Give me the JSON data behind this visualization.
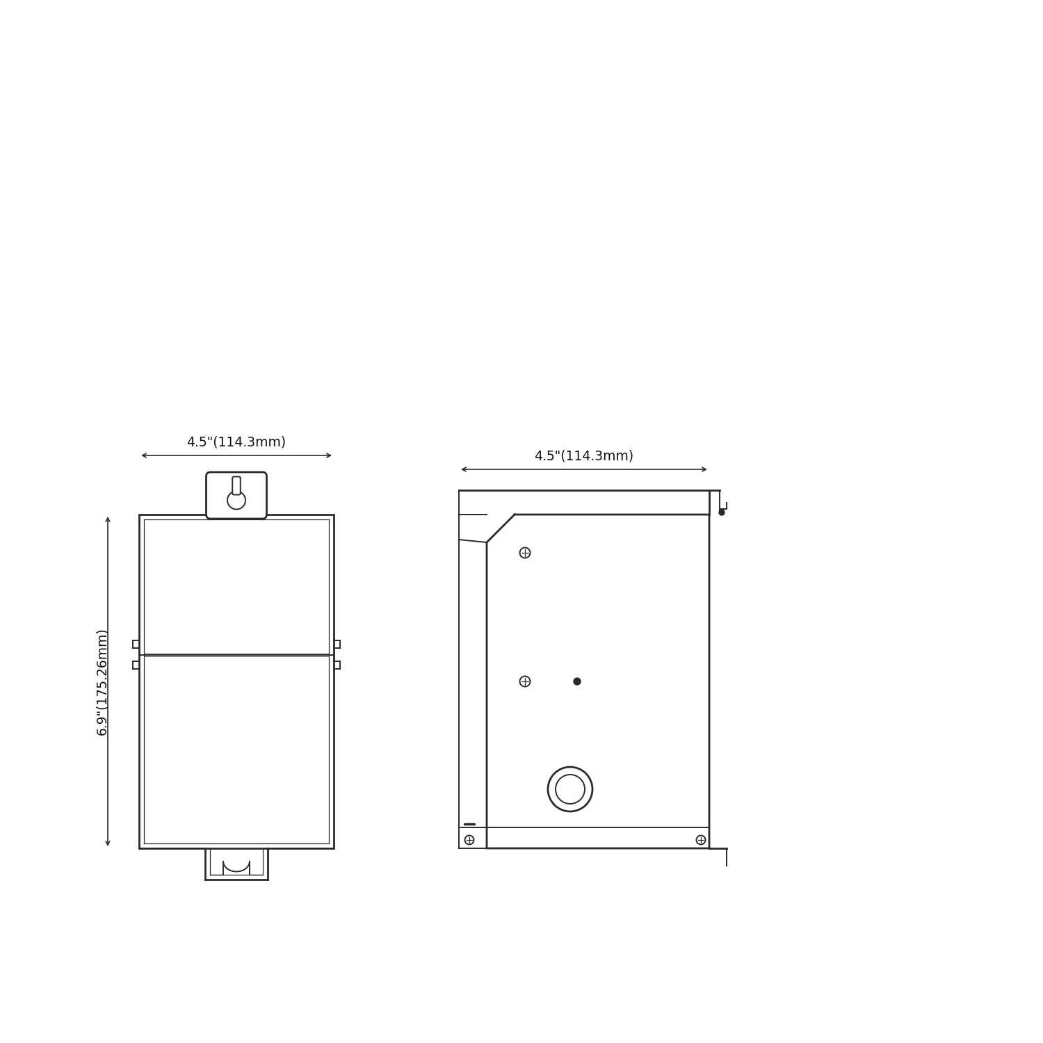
{
  "bg_color": "#ffffff",
  "line_color": "#2a2a2a",
  "lw": 1.4,
  "lw_thin": 0.9,
  "lw_thick": 2.0,
  "dim_color": "#111111",
  "fig_width": 15.0,
  "fig_height": 15.0,
  "width_label": "4.5\"(114.3mm)",
  "height_label": "6.9\"(175.26mm)",
  "width_label2": "4.5\"(114.3mm)",
  "fontsize_dim": 13.5
}
